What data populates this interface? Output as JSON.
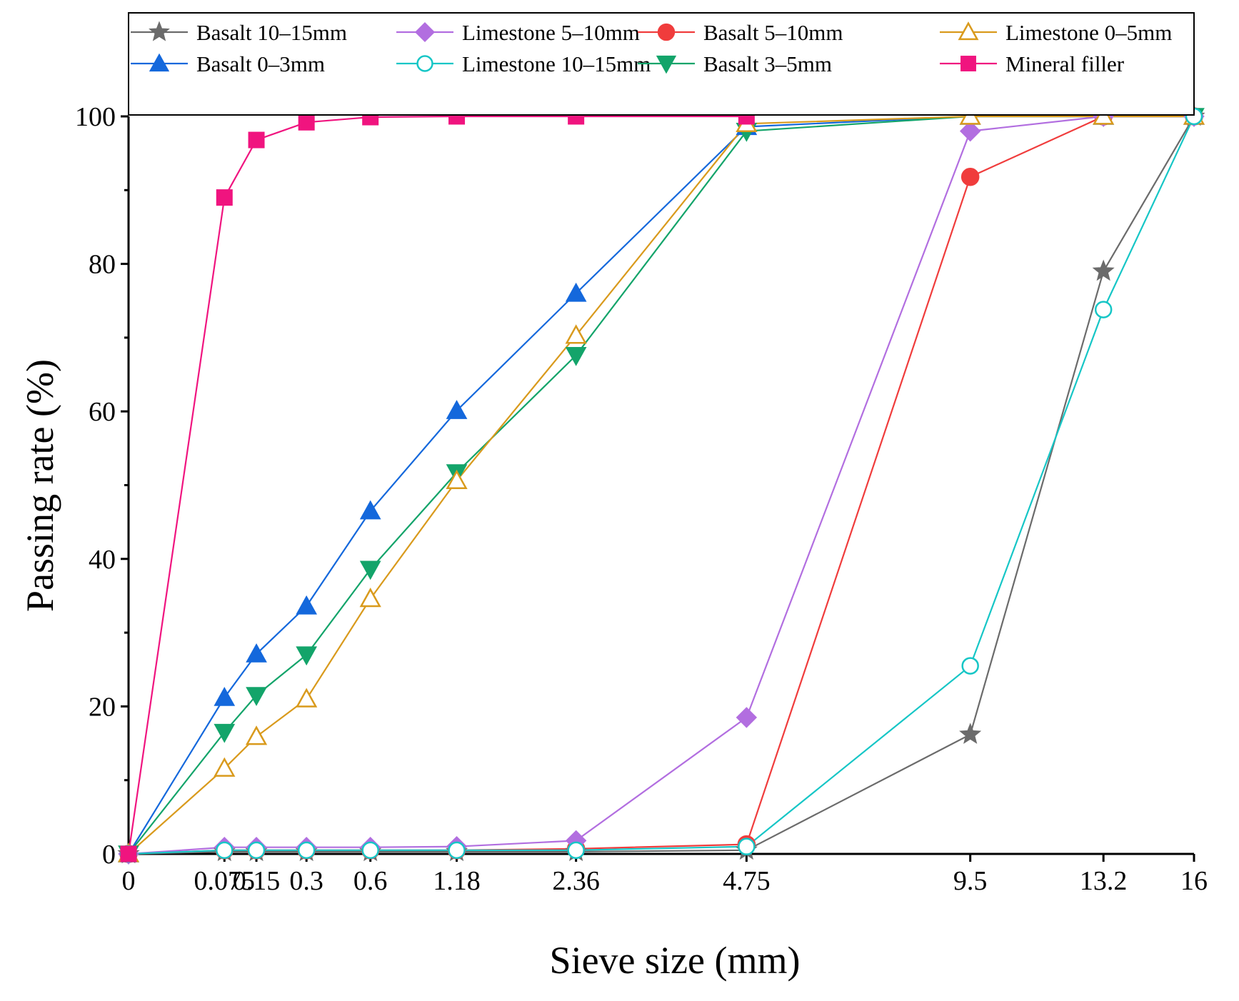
{
  "chart_data": {
    "type": "line",
    "title": "",
    "xlabel": "Sieve size (mm)",
    "ylabel": "Passing rate (%)",
    "categories": [
      "0",
      "0.075",
      "0.15",
      "0.3",
      "0.6",
      "1.18",
      "2.36",
      "4.75",
      "9.5",
      "13.2",
      "16"
    ],
    "category_positions": [
      0,
      0.09,
      0.12,
      0.167,
      0.227,
      0.308,
      0.42,
      0.58,
      0.79,
      0.915,
      1.0
    ],
    "ylim": [
      0,
      100
    ],
    "yticks": [
      0,
      20,
      40,
      60,
      80,
      100
    ],
    "grid": false,
    "legend_position": "top",
    "series": [
      {
        "name": "Basalt 10–15mm",
        "color": "#6b6b6b",
        "marker": "star",
        "x": [
          "0",
          "0.075",
          "0.15",
          "0.3",
          "0.6",
          "1.18",
          "2.36",
          "4.75",
          "9.5",
          "13.2",
          "16"
        ],
        "values": [
          0,
          0.3,
          0.3,
          0.3,
          0.3,
          0.3,
          0.3,
          0.5,
          16.2,
          79,
          100
        ]
      },
      {
        "name": "Basalt 5–10mm",
        "color": "#f03c3c",
        "marker": "circle",
        "x": [
          "0",
          "0.075",
          "0.15",
          "0.3",
          "0.6",
          "1.18",
          "2.36",
          "4.75",
          "9.5",
          "13.2",
          "16"
        ],
        "values": [
          0,
          0.5,
          0.5,
          0.5,
          0.5,
          0.5,
          0.7,
          1.3,
          91.8,
          100,
          100
        ]
      },
      {
        "name": "Basalt 0–3mm",
        "color": "#1468dc",
        "marker": "triangle-up",
        "x": [
          "0",
          "0.075",
          "0.15",
          "0.3",
          "0.6",
          "1.18",
          "2.36",
          "4.75",
          "9.5",
          "13.2",
          "16"
        ],
        "values": [
          0,
          21.2,
          27.1,
          33.6,
          46.5,
          60.1,
          76,
          98.6,
          100,
          100,
          100
        ]
      },
      {
        "name": "Basalt 3–5mm",
        "color": "#13a46a",
        "marker": "triangle-down",
        "x": [
          "0",
          "0.075",
          "0.15",
          "0.3",
          "0.6",
          "1.18",
          "2.36",
          "4.75",
          "9.5",
          "13.2",
          "16"
        ],
        "values": [
          0,
          16.5,
          21.5,
          27,
          38.6,
          51.7,
          67.6,
          98,
          100,
          100,
          100
        ]
      },
      {
        "name": "Limestone 5–10mm",
        "color": "#b26ee0",
        "marker": "diamond",
        "x": [
          "0",
          "0.075",
          "0.15",
          "0.3",
          "0.6",
          "1.18",
          "2.36",
          "4.75",
          "9.5",
          "13.2",
          "16"
        ],
        "values": [
          0,
          0.9,
          0.9,
          0.9,
          0.9,
          1,
          1.8,
          18.5,
          98,
          100,
          100
        ]
      },
      {
        "name": "Limestone 0–5mm",
        "color": "#d99a1c",
        "marker": "triangle-up-open",
        "x": [
          "0",
          "0.075",
          "0.15",
          "0.3",
          "0.6",
          "1.18",
          "2.36",
          "4.75",
          "9.5",
          "13.2",
          "16"
        ],
        "values": [
          0,
          11.6,
          15.9,
          21,
          34.6,
          50.6,
          70.3,
          99,
          100,
          100,
          100
        ]
      },
      {
        "name": "Limestone 10–15mm",
        "color": "#16c6c6",
        "marker": "circle-open",
        "x": [
          "0",
          "0.075",
          "0.15",
          "0.3",
          "0.6",
          "1.18",
          "2.36",
          "4.75",
          "9.5",
          "13.2",
          "16"
        ],
        "values": [
          0,
          0.5,
          0.5,
          0.5,
          0.5,
          0.5,
          0.5,
          1,
          25.5,
          73.8,
          100
        ]
      },
      {
        "name": "Mineral filler",
        "color": "#f0147f",
        "marker": "square",
        "x": [
          "0",
          "0.075",
          "0.15",
          "0.3",
          "0.6",
          "1.18",
          "2.36",
          "4.75"
        ],
        "values": [
          0,
          89,
          96.8,
          99.2,
          99.9,
          100,
          100,
          100
        ]
      }
    ],
    "legend_order": [
      0,
      2,
      4,
      6,
      1,
      3,
      5,
      7
    ]
  }
}
